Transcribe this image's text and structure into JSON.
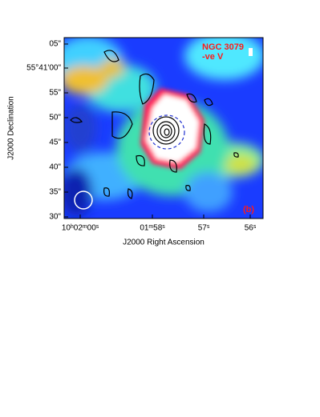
{
  "figure": {
    "x_label": "J2000 Right Ascension",
    "y_label": "J2000 Declination",
    "x_ticks": [
      "10ʰ02ᵐ00ˢ",
      "01ᵐ58ˢ",
      "57ˢ",
      "56ˢ"
    ],
    "y_ticks": [
      "05\"",
      "55°41'00\"",
      "55\"",
      "50\"",
      "45\"",
      "40\"",
      "35\"",
      "30\""
    ],
    "annotations": [
      "NGC 3079",
      "-ve V",
      "(b)"
    ]
  }
}
